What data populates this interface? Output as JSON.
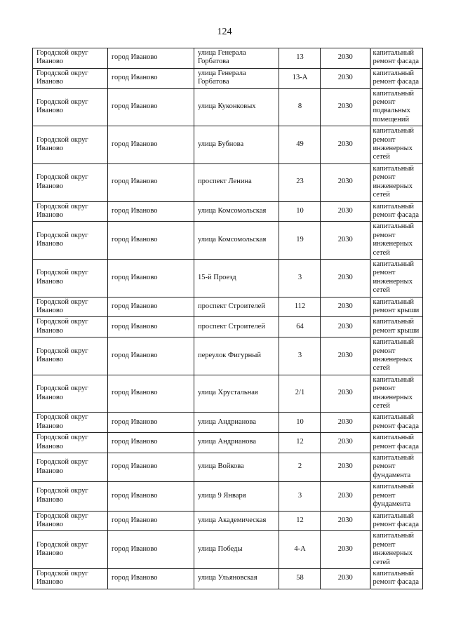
{
  "page_number": "124",
  "rows": [
    {
      "district": "Городской округ Иваново",
      "city": "город Иваново",
      "street": "улица Генерала Горбатова",
      "house": "13",
      "year": "2030",
      "work": "капитальный ремонт фасада"
    },
    {
      "district": "Городской округ Иваново",
      "city": "город Иваново",
      "street": "улица Генерала Горбатова",
      "house": "13-А",
      "year": "2030",
      "work": "капитальный ремонт фасада"
    },
    {
      "district": "Городской округ Иваново",
      "city": "город Иваново",
      "street": "улица Куконковых",
      "house": "8",
      "year": "2030",
      "work": "капитальный ремонт подвальных помещений"
    },
    {
      "district": "Городской округ Иваново",
      "city": "город Иваново",
      "street": "улица Бубнова",
      "house": "49",
      "year": "2030",
      "work": "капитальный ремонт инженерных сетей"
    },
    {
      "district": "Городской округ Иваново",
      "city": "город Иваново",
      "street": "проспект Ленина",
      "house": "23",
      "year": "2030",
      "work": "капитальный ремонт инженерных сетей"
    },
    {
      "district": "Городской округ Иваново",
      "city": "город Иваново",
      "street": "улица Комсомольская",
      "house": "10",
      "year": "2030",
      "work": "капитальный ремонт фасада"
    },
    {
      "district": "Городской округ Иваново",
      "city": "город Иваново",
      "street": "улица Комсомольская",
      "house": "19",
      "year": "2030",
      "work": "капитальный ремонт инженерных сетей"
    },
    {
      "district": "Городской округ Иваново",
      "city": "город Иваново",
      "street": "15-й Проезд",
      "house": "3",
      "year": "2030",
      "work": "капитальный ремонт инженерных сетей"
    },
    {
      "district": "Городской округ Иваново",
      "city": "город Иваново",
      "street": "проспект Строителей",
      "house": "112",
      "year": "2030",
      "work": "капитальный ремонт крыши"
    },
    {
      "district": "Городской округ Иваново",
      "city": "город Иваново",
      "street": "проспект Строителей",
      "house": "64",
      "year": "2030",
      "work": "капитальный ремонт крыши"
    },
    {
      "district": "Городской округ Иваново",
      "city": "город Иваново",
      "street": "переулок Фигурный",
      "house": "3",
      "year": "2030",
      "work": "капитальный ремонт инженерных сетей"
    },
    {
      "district": "Городской округ Иваново",
      "city": "город Иваново",
      "street": "улица Хрустальная",
      "house": "2/1",
      "year": "2030",
      "work": "капитальный ремонт инженерных сетей"
    },
    {
      "district": "Городской округ Иваново",
      "city": "город Иваново",
      "street": "улица Андрианова",
      "house": "10",
      "year": "2030",
      "work": "капитальный ремонт фасада"
    },
    {
      "district": "Городской округ Иваново",
      "city": "город Иваново",
      "street": "улица Андрианова",
      "house": "12",
      "year": "2030",
      "work": "капитальный ремонт фасада"
    },
    {
      "district": "Городской округ Иваново",
      "city": "город Иваново",
      "street": "улица Войкова",
      "house": "2",
      "year": "2030",
      "work": "капитальный ремонт фундамента"
    },
    {
      "district": "Городской округ Иваново",
      "city": "город Иваново",
      "street": "улица 9 Января",
      "house": "3",
      "year": "2030",
      "work": "капитальный ремонт фундамента"
    },
    {
      "district": "Городской округ Иваново",
      "city": "город Иваново",
      "street": "улица Академическая",
      "house": "12",
      "year": "2030",
      "work": "капитальный ремонт фасада"
    },
    {
      "district": "Городской округ Иваново",
      "city": "город Иваново",
      "street": "улица Победы",
      "house": "4-А",
      "year": "2030",
      "work": "капитальный ремонт инженерных сетей"
    },
    {
      "district": "Городской округ Иваново",
      "city": "город Иваново",
      "street": "улица Ульяновская",
      "house": "58",
      "year": "2030",
      "work": "капитальный ремонт фасада"
    }
  ]
}
